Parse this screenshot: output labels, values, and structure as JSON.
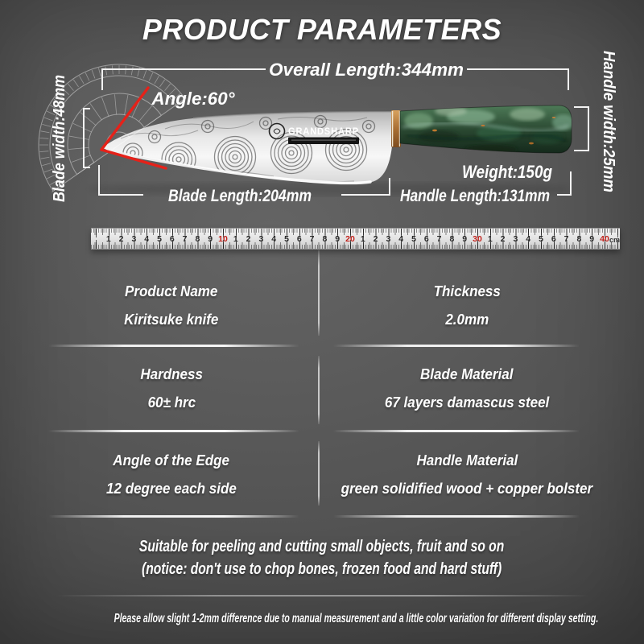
{
  "title": "PRODUCT PARAMETERS",
  "diagram": {
    "brand": "GRANDSHARP",
    "annotations": {
      "overall_length": "Overall Length:344mm",
      "angle": "Angle:60°",
      "blade_width": "Blade width:48mm",
      "handle_width": "Handle width:25mm",
      "weight": "Weight:150g",
      "blade_length": "Blade Length:204mm",
      "handle_length": "Handle Length:131mm"
    }
  },
  "ruler": {
    "unit": "cm",
    "numbers": [
      "1",
      "2",
      "3",
      "4",
      "5",
      "6",
      "7",
      "8",
      "9",
      "10",
      "1",
      "2",
      "3",
      "4",
      "5",
      "6",
      "7",
      "8",
      "9",
      "20",
      "1",
      "2",
      "3",
      "4",
      "5",
      "6",
      "7",
      "8",
      "9",
      "30",
      "1",
      "2",
      "3",
      "4",
      "5",
      "6",
      "7",
      "8",
      "9",
      "40"
    ],
    "red_every": 10
  },
  "spec_table": {
    "rows": [
      {
        "left": {
          "label": "Product Name",
          "value": "Kiritsuke knife"
        },
        "right": {
          "label": "Thickness",
          "value": "2.0mm"
        }
      },
      {
        "left": {
          "label": "Hardness",
          "value": "60± hrc"
        },
        "right": {
          "label": "Blade Material",
          "value": "67 layers damascus steel"
        }
      },
      {
        "left": {
          "label": "Angle of the Edge",
          "value": "12 degree each side"
        },
        "right": {
          "label": "Handle Material",
          "value": "green solidified wood + copper bolster"
        }
      }
    ]
  },
  "usage_note": {
    "line1": "Suitable for peeling and cutting small objects, fruit and so on",
    "line2": "(notice: don't use to chop bones, frozen food and hard stuff)"
  },
  "footer": "Please allow slight 1-2mm difference due to manual measurement and a little color variation for different display setting.",
  "colors": {
    "accent_red": "#e62119",
    "copper": "#a96f33",
    "handle_green": "#2c4f38",
    "text": "#ffffff"
  }
}
